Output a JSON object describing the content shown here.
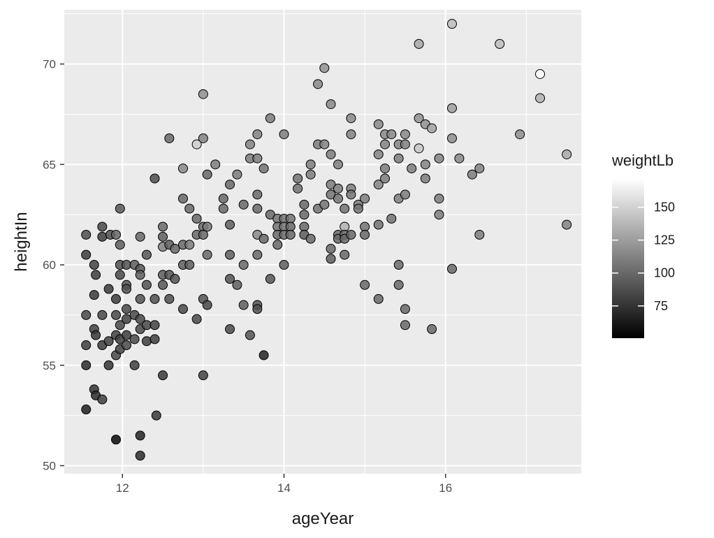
{
  "chart_data": {
    "type": "scatter",
    "title": "",
    "xlabel": "ageYear",
    "ylabel": "heightIn",
    "xlim": [
      11.28,
      17.68
    ],
    "ylim": [
      49.6,
      72.7
    ],
    "x_ticks": [
      12,
      14,
      16
    ],
    "x_tick_labels": [
      "12",
      "14",
      "16"
    ],
    "y_ticks": [
      50,
      55,
      60,
      65,
      70
    ],
    "y_tick_labels": [
      "50",
      "55",
      "60",
      "65",
      "70"
    ],
    "grid": true,
    "color_scale": {
      "variable": "weightLb",
      "title": "weightLb",
      "range": [
        50.5,
        171.5
      ],
      "low_color": "#000000",
      "high_color": "#ffffff",
      "breaks": [
        75,
        100,
        125,
        150
      ],
      "break_labels": [
        "75",
        "100",
        "125",
        "150"
      ]
    },
    "legend_position": "right",
    "points": [
      {
        "x": 11.55,
        "y": 61.5,
        "w": 88
      },
      {
        "x": 11.55,
        "y": 60.5,
        "w": 80
      },
      {
        "x": 11.55,
        "y": 57.5,
        "w": 85
      },
      {
        "x": 11.55,
        "y": 56.0,
        "w": 80
      },
      {
        "x": 11.55,
        "y": 55.0,
        "w": 70
      },
      {
        "x": 11.55,
        "y": 52.8,
        "w": 65
      },
      {
        "x": 11.65,
        "y": 60.0,
        "w": 82
      },
      {
        "x": 11.67,
        "y": 59.5,
        "w": 80
      },
      {
        "x": 11.65,
        "y": 58.5,
        "w": 78
      },
      {
        "x": 11.65,
        "y": 56.8,
        "w": 82
      },
      {
        "x": 11.67,
        "y": 56.5,
        "w": 78
      },
      {
        "x": 11.65,
        "y": 53.8,
        "w": 75
      },
      {
        "x": 11.67,
        "y": 53.5,
        "w": 72
      },
      {
        "x": 11.75,
        "y": 61.9,
        "w": 85
      },
      {
        "x": 11.75,
        "y": 61.4,
        "w": 80
      },
      {
        "x": 11.75,
        "y": 57.5,
        "w": 85
      },
      {
        "x": 11.75,
        "y": 56.0,
        "w": 80
      },
      {
        "x": 11.75,
        "y": 53.3,
        "w": 80
      },
      {
        "x": 11.83,
        "y": 58.8,
        "w": 78
      },
      {
        "x": 11.83,
        "y": 56.2,
        "w": 82
      },
      {
        "x": 11.83,
        "y": 55.0,
        "w": 75
      },
      {
        "x": 11.85,
        "y": 61.5,
        "w": 88
      },
      {
        "x": 11.92,
        "y": 61.5,
        "w": 100
      },
      {
        "x": 11.92,
        "y": 58.3,
        "w": 80
      },
      {
        "x": 11.92,
        "y": 57.5,
        "w": 85
      },
      {
        "x": 11.92,
        "y": 56.5,
        "w": 82
      },
      {
        "x": 11.92,
        "y": 55.5,
        "w": 85
      },
      {
        "x": 11.92,
        "y": 51.3,
        "w": 55
      },
      {
        "x": 11.97,
        "y": 62.8,
        "w": 92
      },
      {
        "x": 11.97,
        "y": 61.0,
        "w": 95
      },
      {
        "x": 11.97,
        "y": 60.0,
        "w": 88
      },
      {
        "x": 11.97,
        "y": 59.5,
        "w": 85
      },
      {
        "x": 11.97,
        "y": 57.0,
        "w": 85
      },
      {
        "x": 11.97,
        "y": 56.3,
        "w": 80
      },
      {
        "x": 11.97,
        "y": 55.8,
        "w": 82
      },
      {
        "x": 12.05,
        "y": 60.0,
        "w": 90
      },
      {
        "x": 12.05,
        "y": 59.0,
        "w": 90
      },
      {
        "x": 12.05,
        "y": 58.8,
        "w": 88
      },
      {
        "x": 12.05,
        "y": 57.8,
        "w": 85
      },
      {
        "x": 12.05,
        "y": 57.3,
        "w": 82
      },
      {
        "x": 12.05,
        "y": 56.5,
        "w": 80
      },
      {
        "x": 12.05,
        "y": 56.0,
        "w": 85
      },
      {
        "x": 12.15,
        "y": 60.0,
        "w": 95
      },
      {
        "x": 12.15,
        "y": 57.5,
        "w": 85
      },
      {
        "x": 12.15,
        "y": 56.3,
        "w": 85
      },
      {
        "x": 12.15,
        "y": 55.0,
        "w": 80
      },
      {
        "x": 12.22,
        "y": 61.4,
        "w": 100
      },
      {
        "x": 12.22,
        "y": 59.8,
        "w": 92
      },
      {
        "x": 12.22,
        "y": 59.5,
        "w": 95
      },
      {
        "x": 12.22,
        "y": 58.3,
        "w": 90
      },
      {
        "x": 12.22,
        "y": 57.3,
        "w": 85
      },
      {
        "x": 12.22,
        "y": 56.8,
        "w": 85
      },
      {
        "x": 12.22,
        "y": 51.5,
        "w": 68
      },
      {
        "x": 12.22,
        "y": 50.5,
        "w": 72
      },
      {
        "x": 12.3,
        "y": 60.5,
        "w": 92
      },
      {
        "x": 12.3,
        "y": 59.0,
        "w": 90
      },
      {
        "x": 12.3,
        "y": 57.0,
        "w": 85
      },
      {
        "x": 12.3,
        "y": 56.2,
        "w": 80
      },
      {
        "x": 12.4,
        "y": 64.3,
        "w": 88
      },
      {
        "x": 12.4,
        "y": 58.3,
        "w": 88
      },
      {
        "x": 12.4,
        "y": 57.0,
        "w": 82
      },
      {
        "x": 12.4,
        "y": 56.3,
        "w": 80
      },
      {
        "x": 12.42,
        "y": 52.5,
        "w": 78
      },
      {
        "x": 12.5,
        "y": 61.9,
        "w": 100
      },
      {
        "x": 12.5,
        "y": 61.4,
        "w": 95
      },
      {
        "x": 12.5,
        "y": 60.9,
        "w": 112
      },
      {
        "x": 12.5,
        "y": 59.5,
        "w": 95
      },
      {
        "x": 12.5,
        "y": 59.0,
        "w": 92
      },
      {
        "x": 12.5,
        "y": 54.5,
        "w": 78
      },
      {
        "x": 12.58,
        "y": 66.3,
        "w": 100
      },
      {
        "x": 12.58,
        "y": 61.0,
        "w": 95
      },
      {
        "x": 12.58,
        "y": 59.5,
        "w": 92
      },
      {
        "x": 12.58,
        "y": 58.3,
        "w": 88
      },
      {
        "x": 12.65,
        "y": 60.8,
        "w": 100
      },
      {
        "x": 12.65,
        "y": 59.3,
        "w": 90
      },
      {
        "x": 12.75,
        "y": 64.8,
        "w": 115
      },
      {
        "x": 12.75,
        "y": 63.3,
        "w": 100
      },
      {
        "x": 12.75,
        "y": 61.0,
        "w": 100
      },
      {
        "x": 12.75,
        "y": 60.0,
        "w": 95
      },
      {
        "x": 12.75,
        "y": 57.8,
        "w": 85
      },
      {
        "x": 12.83,
        "y": 62.8,
        "w": 100
      },
      {
        "x": 12.83,
        "y": 61.0,
        "w": 110
      },
      {
        "x": 12.83,
        "y": 60.0,
        "w": 95
      },
      {
        "x": 12.92,
        "y": 66.0,
        "w": 148
      },
      {
        "x": 12.92,
        "y": 62.3,
        "w": 100
      },
      {
        "x": 12.92,
        "y": 61.5,
        "w": 100
      },
      {
        "x": 12.92,
        "y": 57.3,
        "w": 85
      },
      {
        "x": 13.0,
        "y": 68.5,
        "w": 118
      },
      {
        "x": 13.0,
        "y": 66.3,
        "w": 112
      },
      {
        "x": 13.0,
        "y": 61.9,
        "w": 100
      },
      {
        "x": 13.0,
        "y": 61.5,
        "w": 100
      },
      {
        "x": 13.0,
        "y": 58.3,
        "w": 90
      },
      {
        "x": 13.0,
        "y": 54.5,
        "w": 82
      },
      {
        "x": 13.05,
        "y": 64.5,
        "w": 100
      },
      {
        "x": 13.05,
        "y": 61.9,
        "w": 110
      },
      {
        "x": 13.05,
        "y": 60.5,
        "w": 100
      },
      {
        "x": 13.05,
        "y": 58.0,
        "w": 85
      },
      {
        "x": 13.15,
        "y": 65.0,
        "w": 110
      },
      {
        "x": 13.25,
        "y": 63.3,
        "w": 100
      },
      {
        "x": 13.25,
        "y": 62.8,
        "w": 100
      },
      {
        "x": 13.33,
        "y": 64.0,
        "w": 100
      },
      {
        "x": 13.33,
        "y": 62.0,
        "w": 95
      },
      {
        "x": 13.33,
        "y": 60.5,
        "w": 95
      },
      {
        "x": 13.33,
        "y": 59.3,
        "w": 90
      },
      {
        "x": 13.33,
        "y": 56.8,
        "w": 85
      },
      {
        "x": 13.42,
        "y": 64.5,
        "w": 110
      },
      {
        "x": 13.42,
        "y": 59.0,
        "w": 95
      },
      {
        "x": 13.5,
        "y": 63.0,
        "w": 100
      },
      {
        "x": 13.5,
        "y": 60.0,
        "w": 100
      },
      {
        "x": 13.5,
        "y": 58.0,
        "w": 95
      },
      {
        "x": 13.58,
        "y": 66.0,
        "w": 112
      },
      {
        "x": 13.58,
        "y": 65.3,
        "w": 110
      },
      {
        "x": 13.58,
        "y": 56.5,
        "w": 90
      },
      {
        "x": 13.67,
        "y": 66.5,
        "w": 112
      },
      {
        "x": 13.67,
        "y": 65.3,
        "w": 110
      },
      {
        "x": 13.67,
        "y": 63.5,
        "w": 100
      },
      {
        "x": 13.67,
        "y": 62.8,
        "w": 100
      },
      {
        "x": 13.67,
        "y": 61.5,
        "w": 115
      },
      {
        "x": 13.67,
        "y": 60.5,
        "w": 100
      },
      {
        "x": 13.67,
        "y": 58.0,
        "w": 90
      },
      {
        "x": 13.67,
        "y": 57.8,
        "w": 88
      },
      {
        "x": 13.75,
        "y": 64.8,
        "w": 105
      },
      {
        "x": 13.75,
        "y": 61.3,
        "w": 100
      },
      {
        "x": 13.75,
        "y": 55.5,
        "w": 68
      },
      {
        "x": 13.83,
        "y": 67.3,
        "w": 110
      },
      {
        "x": 13.83,
        "y": 62.5,
        "w": 100
      },
      {
        "x": 13.83,
        "y": 59.3,
        "w": 92
      },
      {
        "x": 13.92,
        "y": 62.3,
        "w": 105
      },
      {
        "x": 13.92,
        "y": 61.9,
        "w": 105
      },
      {
        "x": 13.92,
        "y": 61.5,
        "w": 100
      },
      {
        "x": 13.92,
        "y": 61.0,
        "w": 100
      },
      {
        "x": 14.0,
        "y": 66.5,
        "w": 110
      },
      {
        "x": 14.0,
        "y": 62.3,
        "w": 105
      },
      {
        "x": 14.0,
        "y": 61.9,
        "w": 105
      },
      {
        "x": 14.0,
        "y": 61.5,
        "w": 100
      },
      {
        "x": 14.0,
        "y": 60.0,
        "w": 95
      },
      {
        "x": 14.08,
        "y": 62.3,
        "w": 105
      },
      {
        "x": 14.08,
        "y": 61.9,
        "w": 100
      },
      {
        "x": 14.08,
        "y": 61.5,
        "w": 100
      },
      {
        "x": 14.17,
        "y": 64.3,
        "w": 105
      },
      {
        "x": 14.17,
        "y": 63.8,
        "w": 105
      },
      {
        "x": 14.25,
        "y": 63.0,
        "w": 100
      },
      {
        "x": 14.25,
        "y": 62.5,
        "w": 100
      },
      {
        "x": 14.25,
        "y": 61.9,
        "w": 100
      },
      {
        "x": 14.25,
        "y": 61.5,
        "w": 95
      },
      {
        "x": 14.33,
        "y": 65.0,
        "w": 110
      },
      {
        "x": 14.33,
        "y": 64.5,
        "w": 110
      },
      {
        "x": 14.33,
        "y": 61.3,
        "w": 100
      },
      {
        "x": 14.42,
        "y": 69.0,
        "w": 115
      },
      {
        "x": 14.42,
        "y": 66.0,
        "w": 110
      },
      {
        "x": 14.42,
        "y": 62.8,
        "w": 105
      },
      {
        "x": 14.5,
        "y": 69.8,
        "w": 120
      },
      {
        "x": 14.5,
        "y": 66.0,
        "w": 112
      },
      {
        "x": 14.5,
        "y": 63.0,
        "w": 105
      },
      {
        "x": 14.58,
        "y": 68.0,
        "w": 115
      },
      {
        "x": 14.58,
        "y": 65.5,
        "w": 110
      },
      {
        "x": 14.58,
        "y": 64.0,
        "w": 110
      },
      {
        "x": 14.58,
        "y": 63.5,
        "w": 105
      },
      {
        "x": 14.58,
        "y": 60.8,
        "w": 100
      },
      {
        "x": 14.58,
        "y": 60.3,
        "w": 95
      },
      {
        "x": 14.67,
        "y": 65.0,
        "w": 110
      },
      {
        "x": 14.67,
        "y": 63.8,
        "w": 110
      },
      {
        "x": 14.67,
        "y": 63.3,
        "w": 105
      },
      {
        "x": 14.67,
        "y": 61.5,
        "w": 100
      },
      {
        "x": 14.67,
        "y": 61.3,
        "w": 100
      },
      {
        "x": 14.75,
        "y": 62.8,
        "w": 105
      },
      {
        "x": 14.75,
        "y": 61.9,
        "w": 135
      },
      {
        "x": 14.75,
        "y": 61.5,
        "w": 100
      },
      {
        "x": 14.75,
        "y": 61.3,
        "w": 100
      },
      {
        "x": 14.75,
        "y": 60.5,
        "w": 100
      },
      {
        "x": 14.83,
        "y": 67.3,
        "w": 115
      },
      {
        "x": 14.83,
        "y": 66.5,
        "w": 112
      },
      {
        "x": 14.83,
        "y": 63.8,
        "w": 110
      },
      {
        "x": 14.83,
        "y": 63.5,
        "w": 105
      },
      {
        "x": 14.83,
        "y": 61.5,
        "w": 100
      },
      {
        "x": 14.92,
        "y": 63.0,
        "w": 110
      },
      {
        "x": 14.92,
        "y": 62.8,
        "w": 105
      },
      {
        "x": 15.0,
        "y": 63.3,
        "w": 110
      },
      {
        "x": 15.0,
        "y": 61.9,
        "w": 105
      },
      {
        "x": 15.0,
        "y": 61.5,
        "w": 100
      },
      {
        "x": 15.0,
        "y": 59.0,
        "w": 100
      },
      {
        "x": 15.17,
        "y": 67.0,
        "w": 115
      },
      {
        "x": 15.17,
        "y": 65.5,
        "w": 112
      },
      {
        "x": 15.17,
        "y": 64.0,
        "w": 112
      },
      {
        "x": 15.17,
        "y": 62.0,
        "w": 105
      },
      {
        "x": 15.17,
        "y": 58.3,
        "w": 100
      },
      {
        "x": 15.25,
        "y": 66.5,
        "w": 115
      },
      {
        "x": 15.25,
        "y": 66.0,
        "w": 112
      },
      {
        "x": 15.25,
        "y": 64.8,
        "w": 110
      },
      {
        "x": 15.25,
        "y": 64.3,
        "w": 110
      },
      {
        "x": 15.33,
        "y": 66.5,
        "w": 115
      },
      {
        "x": 15.33,
        "y": 62.3,
        "w": 105
      },
      {
        "x": 15.42,
        "y": 66.0,
        "w": 112
      },
      {
        "x": 15.42,
        "y": 65.3,
        "w": 110
      },
      {
        "x": 15.42,
        "y": 63.3,
        "w": 110
      },
      {
        "x": 15.42,
        "y": 60.0,
        "w": 100
      },
      {
        "x": 15.42,
        "y": 59.0,
        "w": 100
      },
      {
        "x": 15.5,
        "y": 66.5,
        "w": 115
      },
      {
        "x": 15.5,
        "y": 66.0,
        "w": 112
      },
      {
        "x": 15.5,
        "y": 63.5,
        "w": 110
      },
      {
        "x": 15.5,
        "y": 57.8,
        "w": 100
      },
      {
        "x": 15.5,
        "y": 57.0,
        "w": 100
      },
      {
        "x": 15.58,
        "y": 64.8,
        "w": 110
      },
      {
        "x": 15.67,
        "y": 71.0,
        "w": 130
      },
      {
        "x": 15.67,
        "y": 67.3,
        "w": 120
      },
      {
        "x": 15.67,
        "y": 65.8,
        "w": 145
      },
      {
        "x": 15.75,
        "y": 67.0,
        "w": 120
      },
      {
        "x": 15.75,
        "y": 65.0,
        "w": 112
      },
      {
        "x": 15.75,
        "y": 64.3,
        "w": 110
      },
      {
        "x": 15.83,
        "y": 66.8,
        "w": 128
      },
      {
        "x": 15.83,
        "y": 56.8,
        "w": 100
      },
      {
        "x": 15.92,
        "y": 65.3,
        "w": 112
      },
      {
        "x": 15.92,
        "y": 63.3,
        "w": 110
      },
      {
        "x": 15.92,
        "y": 62.5,
        "w": 110
      },
      {
        "x": 16.08,
        "y": 72.0,
        "w": 140
      },
      {
        "x": 16.08,
        "y": 67.8,
        "w": 125
      },
      {
        "x": 16.08,
        "y": 66.3,
        "w": 118
      },
      {
        "x": 16.08,
        "y": 59.8,
        "w": 100
      },
      {
        "x": 16.17,
        "y": 65.3,
        "w": 115
      },
      {
        "x": 16.33,
        "y": 64.5,
        "w": 110
      },
      {
        "x": 16.42,
        "y": 64.8,
        "w": 112
      },
      {
        "x": 16.42,
        "y": 61.5,
        "w": 110
      },
      {
        "x": 16.67,
        "y": 71.0,
        "w": 140
      },
      {
        "x": 16.92,
        "y": 66.5,
        "w": 118
      },
      {
        "x": 17.17,
        "y": 69.5,
        "w": 170
      },
      {
        "x": 17.17,
        "y": 68.3,
        "w": 135
      },
      {
        "x": 17.5,
        "y": 65.5,
        "w": 130
      },
      {
        "x": 17.5,
        "y": 62.0,
        "w": 112
      }
    ]
  }
}
